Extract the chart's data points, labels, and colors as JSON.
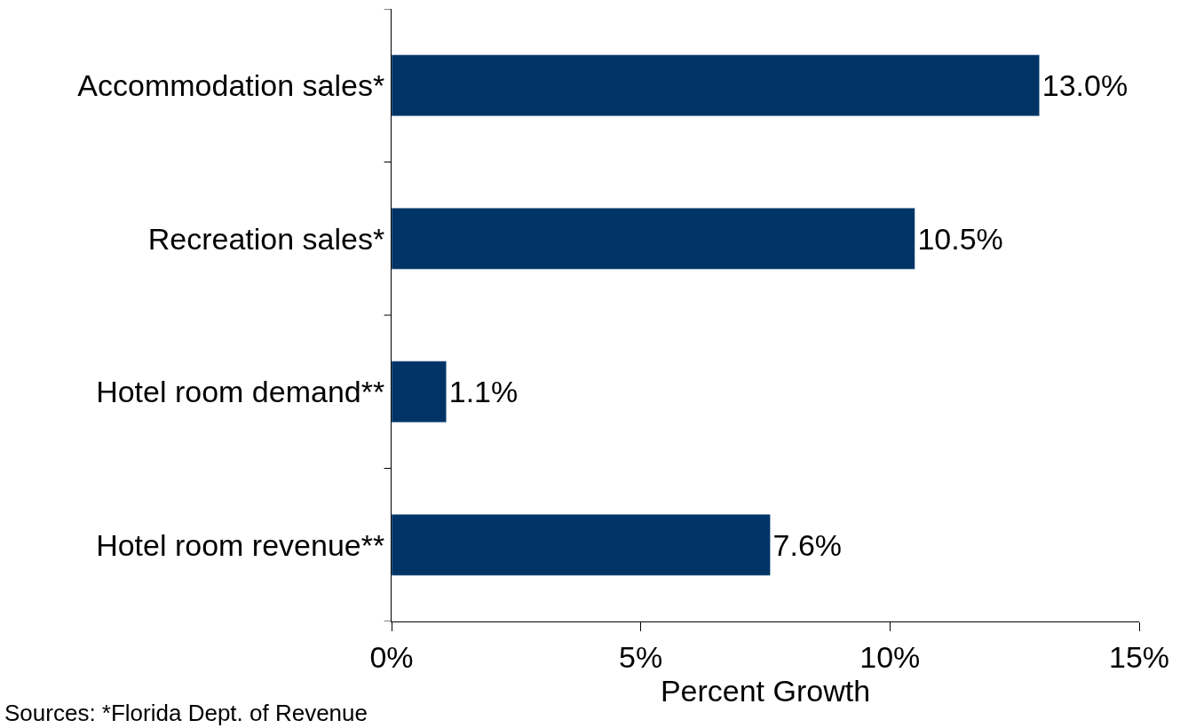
{
  "chart_data": {
    "type": "bar",
    "orientation": "horizontal",
    "xlabel": "Percent Growth",
    "categories": [
      "Accommodation sales*",
      "Recreation sales*",
      "Hotel room demand**",
      "Hotel room revenue**"
    ],
    "values": [
      13.0,
      10.5,
      1.1,
      7.6
    ],
    "color": "#003366",
    "value_labels": [
      "13.0%",
      "10.5%",
      "1.1%",
      "7.6%"
    ],
    "xlim": [
      0,
      15
    ],
    "xticks": [
      {
        "value": 0,
        "label": "0%"
      },
      {
        "value": 5,
        "label": "5%"
      },
      {
        "value": 10,
        "label": "10%"
      },
      {
        "value": 15,
        "label": "15%"
      }
    ],
    "annotations": [
      "Sources: *Florida Dept. of Revenue"
    ]
  }
}
